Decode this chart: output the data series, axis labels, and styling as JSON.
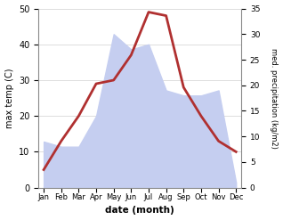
{
  "months": [
    "Jan",
    "Feb",
    "Mar",
    "Apr",
    "May",
    "Jun",
    "Jul",
    "Aug",
    "Sep",
    "Oct",
    "Nov",
    "Dec"
  ],
  "temperature": [
    5,
    13,
    20,
    29,
    30,
    37,
    49,
    48,
    28,
    20,
    13,
    10
  ],
  "precipitation": [
    9,
    8,
    8,
    14,
    30,
    27,
    28,
    19,
    18,
    18,
    19,
    1
  ],
  "temp_color": "#b03030",
  "precip_fill_color": "#c5cef0",
  "temp_ylim": [
    0,
    50
  ],
  "precip_ylim": [
    0,
    35
  ],
  "temp_yticks": [
    0,
    10,
    20,
    30,
    40,
    50
  ],
  "precip_yticks": [
    0,
    5,
    10,
    15,
    20,
    25,
    30,
    35
  ],
  "ylabel_left": "max temp (C)",
  "ylabel_right": "med. precipitation (kg/m2)",
  "xlabel": "date (month)",
  "background_color": "#ffffff",
  "line_width": 2.0,
  "figwidth": 3.18,
  "figheight": 2.47,
  "dpi": 100
}
